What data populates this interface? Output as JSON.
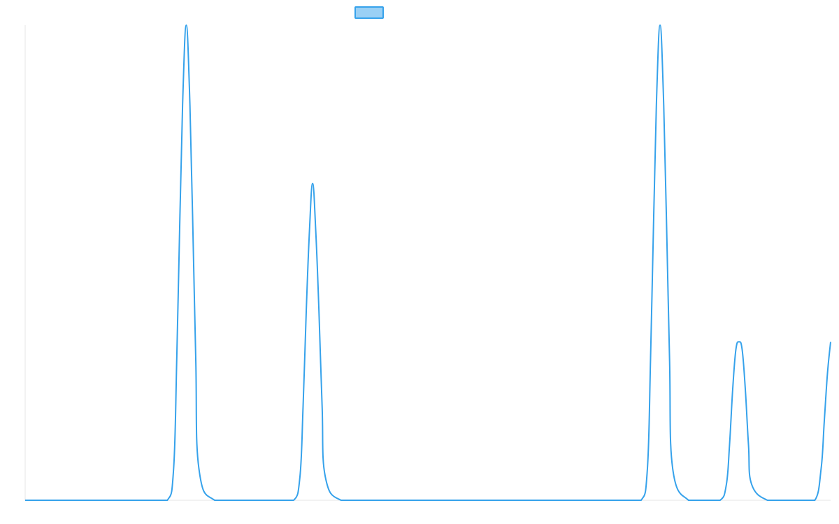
{
  "chart_data": {
    "type": "line",
    "title": "",
    "xlabel": "",
    "ylabel": "",
    "legend": {
      "placement": "top-center",
      "entries": [
        {
          "name": "",
          "color": "#36a2eb",
          "fill": "#9ad0f5"
        }
      ]
    },
    "grid": false,
    "xlim": [
      0,
      255
    ],
    "ylim": [
      0,
      3
    ],
    "series": [
      {
        "name": "",
        "color": "#36a2eb",
        "x": [
          0,
          10,
          20,
          30,
          40,
          45,
          47,
          48,
          49,
          50,
          51,
          52,
          53,
          54,
          55,
          60,
          70,
          80,
          85,
          87,
          88,
          89,
          90,
          91,
          92,
          93,
          94,
          95,
          100,
          110,
          120,
          130,
          140,
          150,
          160,
          170,
          180,
          190,
          195,
          197,
          198,
          199,
          200,
          201,
          202,
          203,
          204,
          205,
          210,
          215,
          220,
          222,
          223,
          224,
          225,
          226,
          227,
          228,
          229,
          230,
          235,
          240,
          245,
          250,
          252,
          253,
          254,
          255
        ],
        "y": [
          0,
          0,
          0,
          0,
          0,
          0,
          0.2,
          0.9,
          1.8,
          2.6,
          3.0,
          2.6,
          1.8,
          0.9,
          0.2,
          0,
          0,
          0,
          0,
          0.15,
          0.6,
          1.2,
          1.7,
          2.0,
          1.7,
          1.2,
          0.6,
          0.15,
          0,
          0,
          0,
          0,
          0,
          0,
          0,
          0,
          0,
          0,
          0,
          0.2,
          0.9,
          1.8,
          2.6,
          3.0,
          2.6,
          1.8,
          0.9,
          0.2,
          0,
          0,
          0,
          0.1,
          0.35,
          0.7,
          0.95,
          1.0,
          0.95,
          0.7,
          0.35,
          0.1,
          0,
          0,
          0,
          0,
          0.2,
          0.5,
          0.8,
          1.0
        ]
      }
    ]
  }
}
